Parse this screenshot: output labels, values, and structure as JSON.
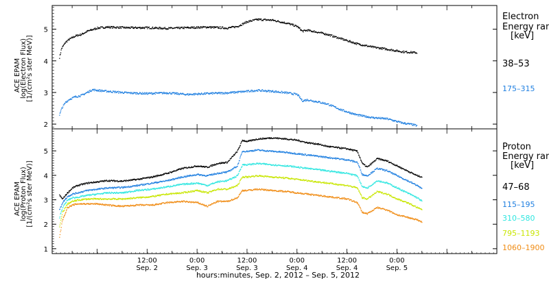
{
  "chart_data": [
    {
      "type": "scatter",
      "panel": "electron",
      "ylabel": [
        "ACE EPAM",
        "log(Electron Flux)",
        "[1/(cm²s ster MeV)]"
      ],
      "ylim": [
        1.85,
        5.75
      ],
      "yticks": [
        2,
        3,
        4,
        5
      ],
      "legend_title": [
        "Electron",
        "Energy ran",
        "[keV]"
      ],
      "legend_placement": "right",
      "series": [
        {
          "name": "38–53",
          "color": "#000000",
          "points": [
            [
              1.62,
              4.12
            ],
            [
              1.64,
              4.4
            ],
            [
              1.68,
              4.6
            ],
            [
              1.72,
              4.7
            ],
            [
              1.78,
              4.8
            ],
            [
              1.84,
              4.85
            ],
            [
              1.9,
              4.95
            ],
            [
              2.0,
              5.05
            ],
            [
              2.1,
              5.08
            ],
            [
              2.3,
              5.06
            ],
            [
              2.5,
              5.06
            ],
            [
              2.7,
              5.04
            ],
            [
              2.9,
              5.06
            ],
            [
              3.1,
              5.08
            ],
            [
              3.3,
              5.05
            ],
            [
              3.4,
              5.1
            ],
            [
              3.5,
              5.25
            ],
            [
              3.6,
              5.32
            ],
            [
              3.75,
              5.3
            ],
            [
              3.9,
              5.2
            ],
            [
              4.0,
              5.1
            ],
            [
              4.05,
              4.95
            ],
            [
              4.1,
              4.98
            ],
            [
              4.2,
              4.92
            ],
            [
              4.3,
              4.85
            ],
            [
              4.45,
              4.7
            ],
            [
              4.6,
              4.55
            ],
            [
              4.75,
              4.45
            ],
            [
              4.9,
              4.38
            ],
            [
              5.05,
              4.3
            ],
            [
              5.15,
              4.28
            ],
            [
              5.2,
              4.27
            ]
          ]
        },
        {
          "name": "175–315",
          "color": "#1f7fe0",
          "points": [
            [
              1.62,
              2.3
            ],
            [
              1.64,
              2.5
            ],
            [
              1.68,
              2.7
            ],
            [
              1.72,
              2.8
            ],
            [
              1.78,
              2.88
            ],
            [
              1.84,
              2.92
            ],
            [
              1.9,
              3.02
            ],
            [
              1.95,
              3.1
            ],
            [
              2.0,
              3.08
            ],
            [
              2.1,
              3.05
            ],
            [
              2.3,
              3.0
            ],
            [
              2.5,
              2.98
            ],
            [
              2.7,
              3.0
            ],
            [
              2.9,
              2.95
            ],
            [
              3.1,
              2.98
            ],
            [
              3.3,
              3.0
            ],
            [
              3.5,
              3.05
            ],
            [
              3.6,
              3.08
            ],
            [
              3.75,
              3.05
            ],
            [
              3.9,
              3.0
            ],
            [
              4.0,
              2.95
            ],
            [
              4.05,
              2.75
            ],
            [
              4.1,
              2.78
            ],
            [
              4.2,
              2.72
            ],
            [
              4.3,
              2.65
            ],
            [
              4.45,
              2.45
            ],
            [
              4.6,
              2.3
            ],
            [
              4.75,
              2.22
            ],
            [
              4.9,
              2.18
            ],
            [
              5.05,
              2.05
            ],
            [
              5.15,
              2.0
            ],
            [
              5.2,
              1.96
            ]
          ]
        }
      ]
    },
    {
      "type": "scatter",
      "panel": "proton",
      "ylabel": [
        "ACE EPAM",
        "log(Proton Flux)",
        "[1/(cm²s ster MeV)]"
      ],
      "ylim": [
        0.8,
        5.9
      ],
      "yticks": [
        1,
        2,
        3,
        4,
        5
      ],
      "legend_title": [
        "Proton",
        "Energy ran",
        "[keV]"
      ],
      "legend_placement": "right",
      "series": [
        {
          "name": "47–68",
          "color": "#000000",
          "points": [
            [
              1.62,
              3.2
            ],
            [
              1.65,
              3.05
            ],
            [
              1.7,
              3.3
            ],
            [
              1.75,
              3.5
            ],
            [
              1.8,
              3.6
            ],
            [
              1.9,
              3.7
            ],
            [
              2.0,
              3.75
            ],
            [
              2.1,
              3.8
            ],
            [
              2.25,
              3.78
            ],
            [
              2.4,
              3.85
            ],
            [
              2.55,
              3.95
            ],
            [
              2.7,
              4.1
            ],
            [
              2.85,
              4.3
            ],
            [
              3.0,
              4.4
            ],
            [
              3.1,
              4.35
            ],
            [
              3.2,
              4.5
            ],
            [
              3.3,
              4.55
            ],
            [
              3.4,
              5.0
            ],
            [
              3.45,
              5.45
            ],
            [
              3.5,
              5.4
            ],
            [
              3.6,
              5.5
            ],
            [
              3.75,
              5.55
            ],
            [
              3.9,
              5.5
            ],
            [
              4.0,
              5.45
            ],
            [
              4.1,
              5.35
            ],
            [
              4.2,
              5.3
            ],
            [
              4.3,
              5.2
            ],
            [
              4.4,
              5.15
            ],
            [
              4.5,
              5.1
            ],
            [
              4.6,
              5.0
            ],
            [
              4.65,
              4.5
            ],
            [
              4.7,
              4.35
            ],
            [
              4.8,
              4.7
            ],
            [
              4.9,
              4.6
            ],
            [
              5.0,
              4.4
            ],
            [
              5.1,
              4.2
            ],
            [
              5.2,
              4.0
            ],
            [
              5.25,
              3.95
            ]
          ]
        },
        {
          "name": "115–195",
          "color": "#1f7fe0",
          "points": [
            [
              1.62,
              2.6
            ],
            [
              1.65,
              2.9
            ],
            [
              1.7,
              3.15
            ],
            [
              1.75,
              3.25
            ],
            [
              1.8,
              3.3
            ],
            [
              1.9,
              3.4
            ],
            [
              2.0,
              3.45
            ],
            [
              2.1,
              3.5
            ],
            [
              2.25,
              3.52
            ],
            [
              2.4,
              3.6
            ],
            [
              2.55,
              3.7
            ],
            [
              2.7,
              3.8
            ],
            [
              2.85,
              3.95
            ],
            [
              3.0,
              4.05
            ],
            [
              3.1,
              4.0
            ],
            [
              3.2,
              4.1
            ],
            [
              3.3,
              4.15
            ],
            [
              3.4,
              4.4
            ],
            [
              3.45,
              5.0
            ],
            [
              3.5,
              5.0
            ],
            [
              3.6,
              5.05
            ],
            [
              3.75,
              5.0
            ],
            [
              3.9,
              4.95
            ],
            [
              4.0,
              4.9
            ],
            [
              4.1,
              4.85
            ],
            [
              4.2,
              4.8
            ],
            [
              4.3,
              4.75
            ],
            [
              4.4,
              4.7
            ],
            [
              4.5,
              4.65
            ],
            [
              4.6,
              4.55
            ],
            [
              4.65,
              4.05
            ],
            [
              4.7,
              4.0
            ],
            [
              4.8,
              4.3
            ],
            [
              4.9,
              4.2
            ],
            [
              5.0,
              4.0
            ],
            [
              5.1,
              3.8
            ],
            [
              5.2,
              3.6
            ],
            [
              5.25,
              3.45
            ]
          ]
        },
        {
          "name": "310–580",
          "color": "#2ee6e0",
          "points": [
            [
              1.62,
              2.3
            ],
            [
              1.65,
              2.7
            ],
            [
              1.7,
              3.0
            ],
            [
              1.75,
              3.1
            ],
            [
              1.8,
              3.12
            ],
            [
              1.9,
              3.2
            ],
            [
              2.0,
              3.25
            ],
            [
              2.1,
              3.3
            ],
            [
              2.25,
              3.3
            ],
            [
              2.4,
              3.4
            ],
            [
              2.55,
              3.45
            ],
            [
              2.7,
              3.55
            ],
            [
              2.85,
              3.65
            ],
            [
              3.0,
              3.7
            ],
            [
              3.1,
              3.6
            ],
            [
              3.2,
              3.75
            ],
            [
              3.3,
              3.8
            ],
            [
              3.4,
              4.0
            ],
            [
              3.45,
              4.45
            ],
            [
              3.5,
              4.45
            ],
            [
              3.6,
              4.5
            ],
            [
              3.75,
              4.45
            ],
            [
              3.9,
              4.4
            ],
            [
              4.0,
              4.35
            ],
            [
              4.1,
              4.3
            ],
            [
              4.2,
              4.25
            ],
            [
              4.3,
              4.2
            ],
            [
              4.4,
              4.15
            ],
            [
              4.5,
              4.1
            ],
            [
              4.6,
              4.0
            ],
            [
              4.65,
              3.55
            ],
            [
              4.7,
              3.5
            ],
            [
              4.8,
              3.8
            ],
            [
              4.9,
              3.7
            ],
            [
              5.0,
              3.5
            ],
            [
              5.1,
              3.3
            ],
            [
              5.2,
              3.1
            ],
            [
              5.25,
              2.95
            ]
          ]
        },
        {
          "name": "795–1193",
          "color": "#c8e600",
          "points": [
            [
              1.62,
              1.9
            ],
            [
              1.65,
              2.5
            ],
            [
              1.7,
              2.85
            ],
            [
              1.75,
              2.95
            ],
            [
              1.8,
              3.0
            ],
            [
              1.9,
              3.05
            ],
            [
              2.0,
              3.05
            ],
            [
              2.1,
              3.05
            ],
            [
              2.25,
              3.05
            ],
            [
              2.4,
              3.1
            ],
            [
              2.55,
              3.15
            ],
            [
              2.7,
              3.25
            ],
            [
              2.85,
              3.3
            ],
            [
              3.0,
              3.4
            ],
            [
              3.1,
              3.3
            ],
            [
              3.2,
              3.45
            ],
            [
              3.3,
              3.45
            ],
            [
              3.4,
              3.6
            ],
            [
              3.45,
              3.95
            ],
            [
              3.5,
              3.95
            ],
            [
              3.6,
              4.0
            ],
            [
              3.75,
              3.95
            ],
            [
              3.9,
              3.9
            ],
            [
              4.0,
              3.85
            ],
            [
              4.1,
              3.8
            ],
            [
              4.2,
              3.75
            ],
            [
              4.3,
              3.7
            ],
            [
              4.4,
              3.65
            ],
            [
              4.5,
              3.6
            ],
            [
              4.6,
              3.5
            ],
            [
              4.65,
              3.1
            ],
            [
              4.7,
              3.05
            ],
            [
              4.8,
              3.35
            ],
            [
              4.9,
              3.25
            ],
            [
              5.0,
              3.05
            ],
            [
              5.1,
              2.9
            ],
            [
              5.2,
              2.7
            ],
            [
              5.25,
              2.6
            ]
          ]
        },
        {
          "name": "1060–1900",
          "color": "#f08c14",
          "points": [
            [
              1.62,
              1.5
            ],
            [
              1.65,
              2.2
            ],
            [
              1.7,
              2.7
            ],
            [
              1.75,
              2.8
            ],
            [
              1.8,
              2.85
            ],
            [
              1.9,
              2.85
            ],
            [
              2.0,
              2.85
            ],
            [
              2.1,
              2.8
            ],
            [
              2.25,
              2.75
            ],
            [
              2.4,
              2.8
            ],
            [
              2.55,
              2.8
            ],
            [
              2.7,
              2.9
            ],
            [
              2.85,
              2.95
            ],
            [
              3.0,
              2.9
            ],
            [
              3.1,
              2.75
            ],
            [
              3.2,
              2.95
            ],
            [
              3.3,
              2.95
            ],
            [
              3.4,
              3.1
            ],
            [
              3.45,
              3.4
            ],
            [
              3.5,
              3.4
            ],
            [
              3.6,
              3.45
            ],
            [
              3.75,
              3.4
            ],
            [
              3.9,
              3.35
            ],
            [
              4.0,
              3.3
            ],
            [
              4.1,
              3.25
            ],
            [
              4.2,
              3.2
            ],
            [
              4.3,
              3.15
            ],
            [
              4.4,
              3.1
            ],
            [
              4.5,
              3.05
            ],
            [
              4.6,
              2.9
            ],
            [
              4.65,
              2.5
            ],
            [
              4.7,
              2.45
            ],
            [
              4.8,
              2.7
            ],
            [
              4.9,
              2.6
            ],
            [
              5.0,
              2.4
            ],
            [
              5.1,
              2.3
            ],
            [
              5.2,
              2.2
            ],
            [
              5.25,
              2.1
            ]
          ]
        }
      ]
    }
  ],
  "x_axis": {
    "unit": "days (September 2012)",
    "xlim": [
      1.55,
      6.0
    ],
    "major_ticks": [
      {
        "x": 2.5,
        "time": "12:00",
        "day": "Sep. 2"
      },
      {
        "x": 3.0,
        "time": "0:00",
        "day": "Sep. 3"
      },
      {
        "x": 3.5,
        "time": "12:00",
        "day": "Sep. 3"
      },
      {
        "x": 4.0,
        "time": "0:00",
        "day": "Sep. 4"
      },
      {
        "x": 4.5,
        "time": "12:00",
        "day": "Sep. 4"
      },
      {
        "x": 5.0,
        "time": "0:00",
        "day": "Sep. 5"
      }
    ],
    "label": "hours:minutes, Sep.  2, 2012 – Sep.  5, 2012"
  }
}
